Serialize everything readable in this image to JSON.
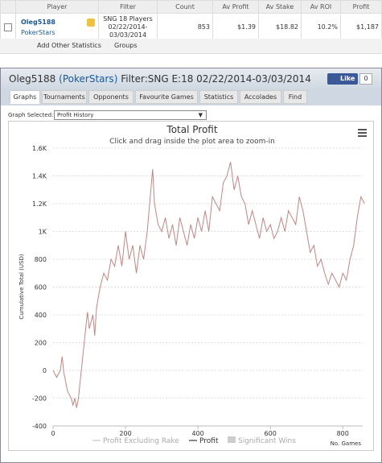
{
  "table": {
    "headers": [
      "Player",
      "Filter",
      "Count",
      "Av Profit",
      "Av Stake",
      "Av ROI",
      "Profit"
    ],
    "row": {
      "player": "Oleg5188",
      "site": "PokerStars",
      "filter": "SNG 18 Players 02/22/2014-03/03/2014",
      "count": "853",
      "av_profit": "$1.39",
      "av_stake": "$18.82",
      "av_roi": "10.2%",
      "profit": "$1,187"
    }
  },
  "toolbar": {
    "add": "Add Other Statistics",
    "groups": "Groups"
  },
  "panel": {
    "player": "Oleg5188",
    "site": "(PokerStars)",
    "filter": "Filter:SNG E:18 02/22/2014-03/03/2014",
    "like": "Like",
    "like_count": "0",
    "tabs": [
      "Graphs",
      "Tournaments",
      "Opponents",
      "Favourite Games",
      "Statistics",
      "Accolades",
      "Find"
    ],
    "graph_selected_label": "Graph Selected:",
    "graph_selected": "Profit History"
  },
  "chart_data": {
    "type": "line",
    "title": "Total Profit",
    "subtitle": "Click and drag inside the plot area to zoom-in",
    "y_label": "Cumulative Total (USD)",
    "x_label": "No. Games",
    "x": [
      0,
      10,
      20,
      25,
      30,
      40,
      50,
      55,
      60,
      65,
      70,
      80,
      90,
      95,
      100,
      110,
      115,
      120,
      130,
      140,
      150,
      160,
      170,
      180,
      190,
      200,
      210,
      220,
      230,
      240,
      250,
      260,
      270,
      275,
      280,
      290,
      300,
      310,
      320,
      330,
      340,
      350,
      360,
      370,
      380,
      390,
      400,
      410,
      420,
      430,
      440,
      450,
      460,
      470,
      480,
      490,
      500,
      510,
      520,
      530,
      540,
      550,
      560,
      570,
      580,
      590,
      600,
      610,
      620,
      630,
      640,
      650,
      660,
      670,
      680,
      690,
      700,
      710,
      720,
      730,
      740,
      750,
      760,
      770,
      780,
      790,
      800,
      810,
      820,
      830,
      840,
      850,
      860
    ],
    "series": [
      {
        "name": "Profit",
        "color": "#c48484",
        "values": [
          0,
          -50,
          0,
          100,
          -20,
          -150,
          -200,
          -250,
          -200,
          -270,
          -200,
          50,
          300,
          420,
          300,
          400,
          250,
          450,
          600,
          700,
          650,
          800,
          750,
          900,
          750,
          1000,
          800,
          900,
          700,
          900,
          800,
          1000,
          1300,
          1450,
          1200,
          1050,
          1000,
          1100,
          950,
          1050,
          900,
          1100,
          1000,
          900,
          1050,
          950,
          1100,
          1000,
          1150,
          1000,
          1250,
          1200,
          1150,
          1350,
          1400,
          1500,
          1300,
          1400,
          1250,
          1200,
          1050,
          1150,
          1050,
          950,
          1100,
          1000,
          1050,
          950,
          1000,
          1100,
          1000,
          1150,
          1100,
          1050,
          1250,
          1150,
          1000,
          850,
          900,
          750,
          800,
          700,
          620,
          700,
          650,
          600,
          700,
          650,
          800,
          900,
          1100,
          1250,
          1200
        ]
      }
    ],
    "legend": [
      {
        "name": "Profit Excluding Rake",
        "color": "#dddddd"
      },
      {
        "name": "Profit",
        "color": "#888888"
      },
      {
        "name": "Significant Wins",
        "color": "#cccccc"
      }
    ],
    "xlim": [
      0,
      855
    ],
    "ylim": [
      -400,
      1600
    ],
    "xticks": [
      0,
      200,
      400,
      600,
      800
    ],
    "yticks": [
      -400,
      -200,
      0,
      200,
      400,
      600,
      800,
      {
        "value": 1000,
        "label": "1K"
      },
      {
        "value": 1200,
        "label": "1.2K"
      },
      {
        "value": 1400,
        "label": "1.4K"
      },
      {
        "value": 1600,
        "label": "1.6K"
      }
    ],
    "grid": true
  }
}
